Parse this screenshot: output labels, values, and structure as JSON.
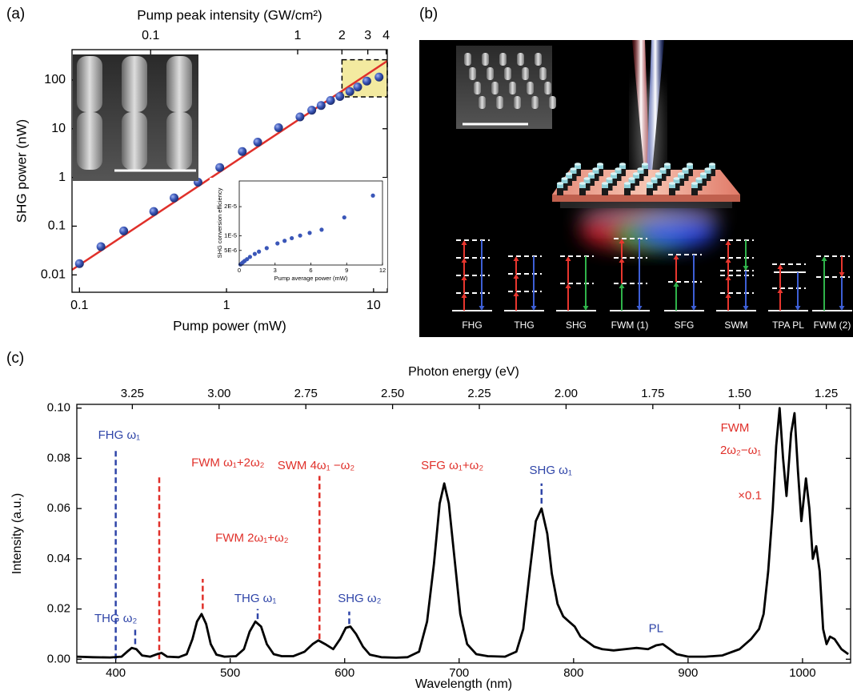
{
  "figure": {
    "panel_labels": [
      "(a)",
      "(b)",
      "(c)"
    ],
    "processes": [
      "FHG",
      "THG",
      "SHG",
      "FWM (1)",
      "SFG",
      "SWM",
      "TPA PL",
      "FWM (2)"
    ]
  },
  "chart_data": [
    {
      "type": "scatter",
      "x2label": "Pump peak intensity (GW/cm²)",
      "xlabel": "Pump power (mW)",
      "ylabel": "SHG power (nW)",
      "xscale": "log",
      "yscale": "log",
      "xlim": [
        0.089,
        12.4
      ],
      "ylim": [
        0.0044,
        420
      ],
      "x2lim": [
        0.0292,
        4.07
      ],
      "xticks": [
        0.1,
        1,
        10
      ],
      "yticks": [
        0.01,
        0.1,
        1,
        10,
        100
      ],
      "x2ticks": [
        0.1,
        1,
        2,
        3,
        4
      ],
      "color": "#3a56b8",
      "x": [
        0.1,
        0.14,
        0.2,
        0.32,
        0.44,
        0.64,
        0.9,
        1.28,
        1.63,
        2.26,
        3.16,
        3.8,
        4.4,
        5.1,
        5.9,
        6.9,
        7.8,
        9.0,
        10.9
      ],
      "values": [
        0.017,
        0.038,
        0.08,
        0.2,
        0.38,
        0.8,
        1.6,
        3.4,
        5.3,
        10.5,
        17.5,
        24,
        30,
        38,
        46,
        58,
        72,
        95,
        115
      ],
      "fit": {
        "color": "#e0302a",
        "x": [
          0.089,
          12.4
        ],
        "values": [
          0.0127,
          246
        ]
      },
      "highlight": {
        "color": "#f3eaa0",
        "xlim": [
          6.1,
          12.4
        ],
        "ylim": [
          45,
          260
        ]
      }
    },
    {
      "type": "scatter",
      "xlabel": "Pump average power (mW)",
      "ylabel": "SHG conversion efficiency",
      "xlim": [
        0,
        12
      ],
      "ylim": [
        0,
        2.88e-05
      ],
      "xticks": [
        0,
        3,
        6,
        9,
        12
      ],
      "yticks": [
        {
          "value": 5e-06,
          "label": "5E-6"
        },
        {
          "value": 1e-05,
          "label": "1E-5"
        },
        {
          "value": 2e-05,
          "label": "2E-5"
        }
      ],
      "color": "#3a56b8",
      "x": [
        0.1,
        0.2,
        0.3,
        0.45,
        0.65,
        0.9,
        1.3,
        1.65,
        2.3,
        3.2,
        3.8,
        4.4,
        5.1,
        5.9,
        6.9,
        8.8,
        11.2
      ],
      "values": [
        2e-07,
        5e-07,
        9e-07,
        1.4e-06,
        2e-06,
        2.8e-06,
        3.8e-06,
        4.6e-06,
        5.8e-06,
        7.4e-06,
        8.3e-06,
        9.2e-06,
        1.01e-05,
        1.1e-05,
        1.21e-05,
        1.63e-05,
        2.38e-05
      ]
    },
    {
      "type": "line",
      "x2label": "Photon energy (eV)",
      "xlabel": "Wavelength (nm)",
      "ylabel": "Intensity (a.u.)",
      "xlim": [
        366,
        1042
      ],
      "ylim": [
        -0.0015,
        0.1015
      ],
      "x2lim": [
        3.41,
        1.18
      ],
      "xticks": [
        400,
        500,
        600,
        700,
        800,
        900,
        1000
      ],
      "yticks": [
        {
          "value": 0,
          "label": "0.00"
        },
        0.02,
        0.04,
        0.06,
        0.08,
        {
          "value": 0.1,
          "label": "0.10"
        }
      ],
      "x2ticks": [
        3.25,
        {
          "value": 3,
          "label": "3.00"
        },
        2.75,
        {
          "value": 2.5,
          "label": "2.50"
        },
        2.25,
        {
          "value": 2,
          "label": "2.00"
        },
        1.75,
        {
          "value": 1.5,
          "label": "1.50"
        },
        1.25
      ],
      "color": "#000000",
      "x": [
        366,
        380,
        395,
        405,
        410,
        414,
        418,
        423,
        430,
        436,
        440,
        445,
        455,
        462,
        467,
        471,
        475,
        479,
        483,
        488,
        495,
        505,
        512,
        517,
        522,
        527,
        532,
        538,
        545,
        555,
        565,
        572,
        577,
        583,
        590,
        596,
        601,
        605,
        610,
        616,
        622,
        632,
        645,
        655,
        665,
        672,
        678,
        683,
        687,
        691,
        696,
        701,
        707,
        715,
        725,
        740,
        750,
        756,
        762,
        767,
        772,
        777,
        781,
        786,
        791,
        796,
        801,
        806,
        812,
        818,
        825,
        835,
        845,
        855,
        865,
        872,
        878,
        884,
        890,
        900,
        915,
        930,
        945,
        955,
        962,
        966,
        970,
        974,
        977,
        980,
        983,
        986,
        990,
        993,
        996,
        999,
        1003,
        1006,
        1009,
        1012,
        1015,
        1018,
        1021,
        1024,
        1028,
        1034,
        1040
      ],
      "values": [
        0.001,
        0.0008,
        0.0007,
        0.001,
        0.003,
        0.0045,
        0.004,
        0.0015,
        0.001,
        0.002,
        0.0025,
        0.001,
        0.0008,
        0.002,
        0.008,
        0.015,
        0.018,
        0.014,
        0.006,
        0.0018,
        0.001,
        0.0012,
        0.004,
        0.011,
        0.015,
        0.013,
        0.006,
        0.002,
        0.0012,
        0.0012,
        0.003,
        0.006,
        0.0075,
        0.006,
        0.004,
        0.008,
        0.0125,
        0.013,
        0.01,
        0.005,
        0.0018,
        0.0008,
        0.0006,
        0.0008,
        0.003,
        0.015,
        0.038,
        0.062,
        0.07,
        0.062,
        0.04,
        0.018,
        0.006,
        0.002,
        0.0012,
        0.001,
        0.003,
        0.012,
        0.036,
        0.055,
        0.06,
        0.05,
        0.034,
        0.022,
        0.017,
        0.015,
        0.013,
        0.009,
        0.007,
        0.005,
        0.004,
        0.0035,
        0.004,
        0.0045,
        0.004,
        0.0055,
        0.006,
        0.004,
        0.002,
        0.001,
        0.001,
        0.0015,
        0.004,
        0.008,
        0.012,
        0.018,
        0.035,
        0.06,
        0.085,
        0.1,
        0.08,
        0.065,
        0.09,
        0.098,
        0.075,
        0.055,
        0.072,
        0.06,
        0.04,
        0.045,
        0.035,
        0.012,
        0.006,
        0.009,
        0.008,
        0.004,
        0.002
      ],
      "markers": [
        {
          "x": 400,
          "y": [
            0,
            0.084
          ],
          "color": "#2f45a8"
        },
        {
          "x": 417,
          "y": [
            0.006,
            0.012
          ],
          "color": "#2f45a8"
        },
        {
          "x": 438,
          "y": [
            0,
            0.073
          ],
          "color": "#e0302a"
        },
        {
          "x": 476,
          "y": [
            0.02,
            0.032
          ],
          "color": "#e0302a"
        },
        {
          "x": 524,
          "y": [
            0.016,
            0.02
          ],
          "color": "#2f45a8"
        },
        {
          "x": 578,
          "y": [
            0.008,
            0.073
          ],
          "color": "#e0302a"
        },
        {
          "x": 604,
          "y": [
            0.014,
            0.019
          ],
          "color": "#2f45a8"
        },
        {
          "x": 772,
          "y": [
            0.062,
            0.07
          ],
          "color": "#2f45a8"
        }
      ],
      "annotations": [
        {
          "text": "FHG ω₁",
          "x": 403,
          "y": 0.089,
          "color": "#2f45a8"
        },
        {
          "text": "THG ω₂",
          "x": 400,
          "y": 0.016,
          "color": "#2f45a8"
        },
        {
          "text": "FWM ω₁+2ω₂",
          "x": 498,
          "y": 0.078,
          "color": "#e0302a"
        },
        {
          "text": "FWM 2ω₁+ω₂",
          "x": 519,
          "y": 0.048,
          "color": "#e0302a"
        },
        {
          "text": "THG ω₁",
          "x": 522,
          "y": 0.024,
          "color": "#2f45a8"
        },
        {
          "text": "SWM 4ω₁ −ω₂",
          "x": 575,
          "y": 0.077,
          "color": "#e0302a"
        },
        {
          "text": "SHG ω₂",
          "x": 613,
          "y": 0.024,
          "color": "#2f45a8"
        },
        {
          "text": "SFG ω₁+ω₂",
          "x": 694,
          "y": 0.077,
          "color": "#e0302a"
        },
        {
          "text": "SHG ω₁",
          "x": 780,
          "y": 0.075,
          "color": "#2f45a8"
        },
        {
          "text": "PL",
          "x": 872,
          "y": 0.012,
          "color": "#2f45a8"
        },
        {
          "text": "FWM",
          "x": 941,
          "y": 0.092,
          "color": "#e0302a"
        },
        {
          "text": "2ω₂−ω₁",
          "x": 946,
          "y": 0.083,
          "color": "#e0302a"
        },
        {
          "text": "×0.1",
          "x": 954,
          "y": 0.065,
          "color": "#e0302a"
        }
      ]
    }
  ]
}
